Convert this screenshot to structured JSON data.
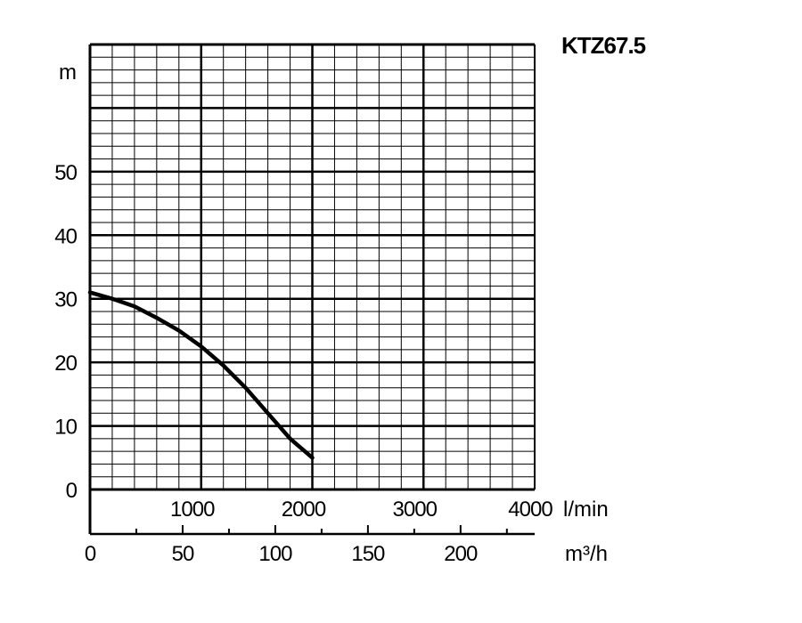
{
  "chart_data": {
    "type": "line",
    "title": "KTZ67.5",
    "ylabel": "m",
    "xlabel": "l/min",
    "x2label": "m³/h",
    "xlim": [
      0,
      4000
    ],
    "ylim": [
      0,
      70
    ],
    "x2lim": [
      0,
      240
    ],
    "grid": true,
    "xticks": [
      1000,
      2000,
      3000,
      4000
    ],
    "yticks": [
      0,
      10,
      20,
      30,
      40,
      50
    ],
    "x2ticks": [
      0,
      50,
      100,
      150,
      200
    ],
    "xtick_labels": [
      "1000",
      "2000",
      "3000",
      "4000"
    ],
    "ytick_labels": [
      "0",
      "10",
      "20",
      "30",
      "40",
      "50"
    ],
    "x2tick_labels": [
      "0",
      "50",
      "100",
      "150",
      "200"
    ],
    "series": [
      {
        "x": [
          0,
          200,
          400,
          600,
          800,
          1000,
          1200,
          1400,
          1600,
          1800,
          2000
        ],
        "y": [
          31,
          30,
          28.8,
          27,
          25,
          22.5,
          19.5,
          16,
          12,
          8,
          5
        ]
      }
    ],
    "colors": {
      "line": "#000000",
      "grid": "#000000",
      "background": "#ffffff"
    }
  }
}
